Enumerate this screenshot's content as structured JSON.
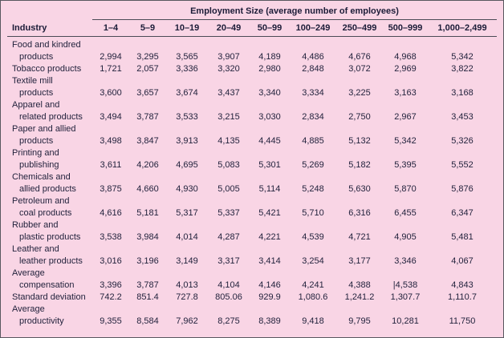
{
  "header": {
    "span_label": "Employment Size (average number of employees)"
  },
  "table": {
    "columns": [
      "Industry",
      "1–4",
      "5–9",
      "10–19",
      "20–49",
      "50–99",
      "100–249",
      "250–499",
      "500–999",
      "1,000–2,499"
    ],
    "rows": [
      {
        "label_lines": [
          "Food and kindred",
          "products"
        ],
        "values": [
          "2,994",
          "3,295",
          "3,565",
          "3,907",
          "4,189",
          "4,486",
          "4,676",
          "4,968",
          "5,342"
        ]
      },
      {
        "label_lines": [
          "Tobacco products"
        ],
        "values": [
          "1,721",
          "2,057",
          "3,336",
          "3,320",
          "2,980",
          "2,848",
          "3,072",
          "2,969",
          "3,822"
        ]
      },
      {
        "label_lines": [
          "Textile mill",
          "products"
        ],
        "values": [
          "3,600",
          "3,657",
          "3,674",
          "3,437",
          "3,340",
          "3,334",
          "3,225",
          "3,163",
          "3,168"
        ]
      },
      {
        "label_lines": [
          "Apparel and",
          "related products"
        ],
        "values": [
          "3,494",
          "3,787",
          "3,533",
          "3,215",
          "3,030",
          "2,834",
          "2,750",
          "2,967",
          "3,453"
        ]
      },
      {
        "label_lines": [
          "Paper and allied",
          "products"
        ],
        "values": [
          "3,498",
          "3,847",
          "3,913",
          "4,135",
          "4,445",
          "4,885",
          "5,132",
          "5,342",
          "5,326"
        ]
      },
      {
        "label_lines": [
          "Printing and",
          "publishing"
        ],
        "values": [
          "3,611",
          "4,206",
          "4,695",
          "5,083",
          "5,301",
          "5,269",
          "5,182",
          "5,395",
          "5,552"
        ]
      },
      {
        "label_lines": [
          "Chemicals and",
          "allied products"
        ],
        "values": [
          "3,875",
          "4,660",
          "4,930",
          "5,005",
          "5,114",
          "5,248",
          "5,630",
          "5,870",
          "5,876"
        ]
      },
      {
        "label_lines": [
          "Petroleum and",
          "coal products"
        ],
        "values": [
          "4,616",
          "5,181",
          "5,317",
          "5,337",
          "5,421",
          "5,710",
          "6,316",
          "6,455",
          "6,347"
        ]
      },
      {
        "label_lines": [
          "Rubber and",
          "plastic products"
        ],
        "values": [
          "3,538",
          "3,984",
          "4,014",
          "4,287",
          "4,221",
          "4,539",
          "4,721",
          "4,905",
          "5,481"
        ]
      },
      {
        "label_lines": [
          "Leather and",
          "leather products"
        ],
        "values": [
          "3,016",
          "3,196",
          "3,149",
          "3,317",
          "3,414",
          "3,254",
          "3,177",
          "3,346",
          "4,067"
        ]
      },
      {
        "label_lines": [
          "Average",
          "compensation"
        ],
        "values": [
          "3,396",
          "3,787",
          "4,013",
          "4,104",
          "4,146",
          "4,241",
          "4,388",
          "|4,538",
          "4,843"
        ]
      },
      {
        "label_lines": [
          "Standard deviation"
        ],
        "values": [
          "742.2",
          "851.4",
          "727.8",
          "805.06",
          "929.9",
          "1,080.6",
          "1,241.2",
          "1,307.7",
          "1,110.7"
        ]
      },
      {
        "label_lines": [
          "Average",
          "productivity"
        ],
        "values": [
          "9,355",
          "8,584",
          "7,962",
          "8,275",
          "8,389",
          "9,418",
          "9,795",
          "10,281",
          "11,750"
        ]
      }
    ]
  },
  "colors": {
    "background": "#f9d5e5",
    "text": "#23233d",
    "rule": "#4a4a55",
    "border": "#58585f"
  }
}
